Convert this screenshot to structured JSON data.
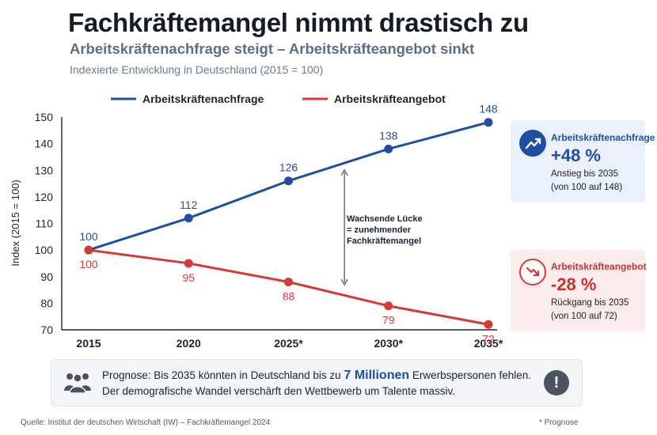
{
  "header": {
    "title": "Fachkräftemangel nimmt drastisch zu",
    "subtitle": "Arbeitskräftenachfrage steigt – Arbeitskräfteangebot sinkt",
    "description": "Indexierte Entwicklung in Deutschland (2015 = 100)"
  },
  "chart_data": {
    "type": "line",
    "title": "",
    "xlabel": "",
    "ylabel": "Index (2015 = 100)",
    "categories": [
      "2015",
      "2020",
      "2025*",
      "2030*",
      "2035*"
    ],
    "x": [
      2015,
      2020,
      2025,
      2030,
      2035
    ],
    "ylim": [
      70,
      150
    ],
    "yticks": [
      70,
      80,
      90,
      100,
      110,
      120,
      130,
      140,
      150
    ],
    "grid": false,
    "legend": "top",
    "series": [
      {
        "name": "Arbeitskräftenachfrage",
        "color": "#1f4ea3",
        "values": [
          100,
          112,
          126,
          138,
          148
        ]
      },
      {
        "name": "Arbeitskräfteangebot",
        "color": "#d63a36",
        "values": [
          100,
          95,
          88,
          79,
          72
        ]
      }
    ],
    "annotation": {
      "lines": [
        "Wachsende Lücke",
        "= zunehmender",
        "Fachkräftemangel"
      ],
      "x": 2027.8,
      "from": 86,
      "to": 131
    }
  },
  "cards": {
    "demand": {
      "icon": "trend-up-icon",
      "title": "Arbeitskräftenachfrage",
      "value": "+48 %",
      "line1": "Anstieg bis 2035",
      "line2": "(von 100 auf 148)"
    },
    "supply": {
      "icon": "trend-down-icon",
      "title": "Arbeitskräfteangebot",
      "value": "-28 %",
      "line1": "Rückgang bis 2035",
      "line2": "(von 100 auf 72)"
    }
  },
  "note": {
    "prefix": "Prognose: Bis 2035 könnten in Deutschland bis zu",
    "highlight": "7 Millionen",
    "suffix": "Erwerbspersonen fehlen.",
    "line2": "Der demografische Wandel verschärft den Wettbewerb um Talente massiv.",
    "icon_left": "people-icon",
    "icon_right": "exclamation-icon",
    "exclamation": "!"
  },
  "footer": {
    "source": "Quelle: Institut der deutschen Wirtschaft (IW) – Fachkräftemangel 2024",
    "prognose": "* Prognose"
  }
}
